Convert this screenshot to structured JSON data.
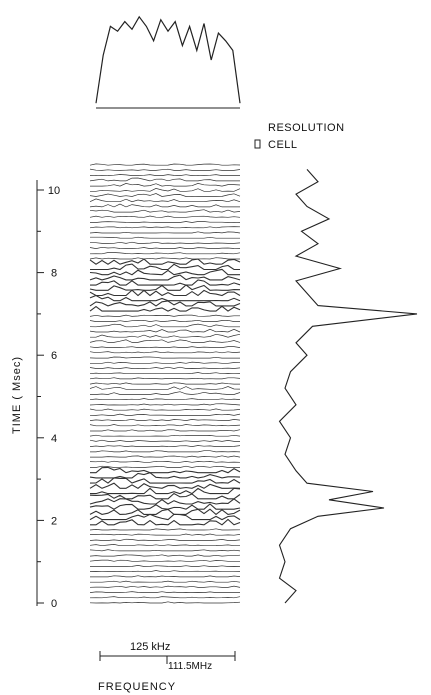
{
  "chart_data": {
    "type": "line",
    "resolution_label_line1": "RESOLUTION",
    "resolution_label_line2": "CELL",
    "time_axis": {
      "label": "TIME ( Msec)",
      "tick_labels": [
        "0",
        "2",
        "4",
        "6",
        "8",
        "10"
      ],
      "ylim": [
        0,
        10.5
      ]
    },
    "frequency_axis": {
      "label": "FREQUENCY",
      "span_label": "125 kHz",
      "center_label": "111.5MHz"
    },
    "top_spectrum": {
      "x": [
        0,
        0.05,
        0.1,
        0.15,
        0.2,
        0.25,
        0.3,
        0.35,
        0.4,
        0.45,
        0.5,
        0.55,
        0.6,
        0.65,
        0.7,
        0.75,
        0.8,
        0.85,
        0.9,
        0.95,
        1
      ],
      "values": [
        0.05,
        0.55,
        0.85,
        0.8,
        0.9,
        0.82,
        0.95,
        0.85,
        0.7,
        0.92,
        0.8,
        0.9,
        0.65,
        0.85,
        0.6,
        0.88,
        0.5,
        0.78,
        0.7,
        0.6,
        0.05
      ]
    },
    "time_profile": {
      "time_ms": [
        0,
        0.3,
        0.6,
        1.0,
        1.4,
        1.8,
        2.1,
        2.3,
        2.5,
        2.7,
        2.9,
        3.2,
        3.6,
        4.0,
        4.4,
        4.8,
        5.2,
        5.6,
        6.0,
        6.3,
        6.7,
        7.0,
        7.2,
        7.5,
        7.8,
        8.1,
        8.4,
        8.7,
        9.0,
        9.3,
        9.6,
        9.9,
        10.2,
        10.5
      ],
      "values": [
        0.1,
        0.2,
        0.05,
        0.1,
        0.05,
        0.15,
        0.4,
        1.0,
        0.5,
        0.9,
        0.3,
        0.2,
        0.1,
        0.15,
        0.05,
        0.2,
        0.1,
        0.15,
        0.3,
        0.2,
        0.35,
        1.3,
        0.4,
        0.3,
        0.2,
        0.6,
        0.2,
        0.4,
        0.25,
        0.5,
        0.3,
        0.2,
        0.4,
        0.3
      ]
    },
    "waterfall": {
      "trace_count": 85,
      "strong_time_bands_ms": [
        [
          1.8,
          3.2
        ],
        [
          7.0,
          8.3
        ]
      ],
      "moderate_time_bands_ms": [
        [
          6.2,
          6.8
        ],
        [
          9.4,
          10.3
        ],
        [
          5.0,
          5.2
        ]
      ]
    }
  }
}
